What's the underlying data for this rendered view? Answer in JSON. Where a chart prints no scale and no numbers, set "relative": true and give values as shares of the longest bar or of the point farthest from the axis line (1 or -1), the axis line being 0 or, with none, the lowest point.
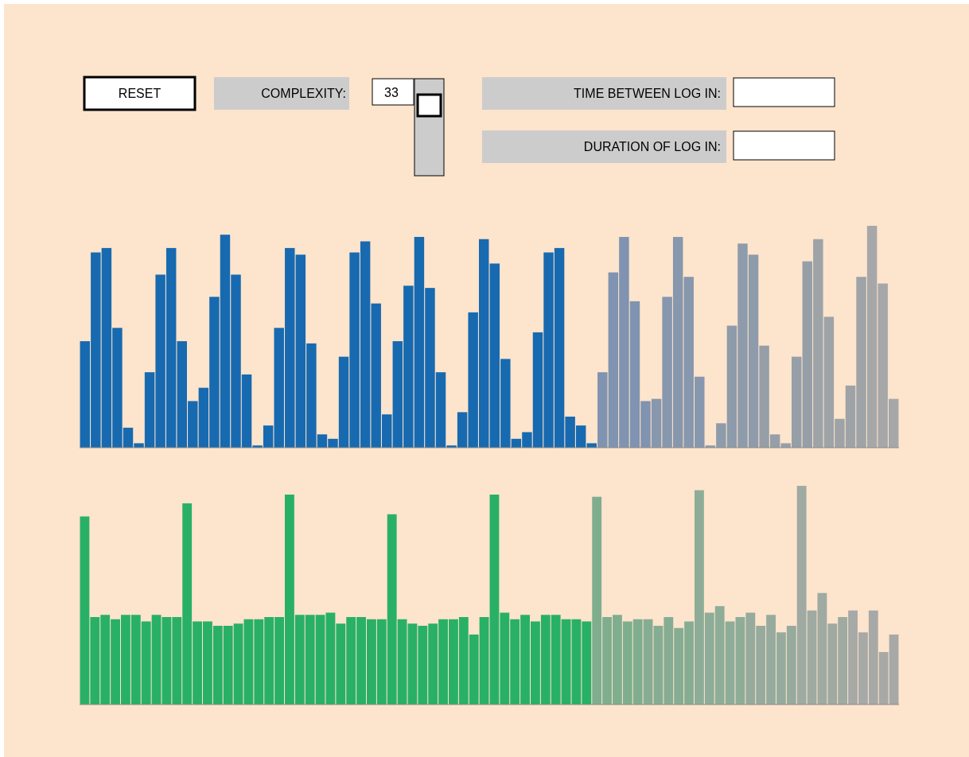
{
  "chart_data": [
    {
      "type": "other",
      "annotations": [
        "RESET",
        "COMPLEXITY:",
        "33",
        "TIME BETWEEN LOG IN:",
        "DURATION OF LOG IN:"
      ]
    },
    {
      "type": "bar",
      "relative": true,
      "categories": [
        null,
        null,
        null,
        null,
        null,
        null,
        null,
        null,
        null,
        null,
        null,
        null,
        null,
        null,
        null,
        null,
        null,
        null,
        null,
        null,
        null,
        null,
        null,
        null,
        null,
        null,
        null,
        null,
        null,
        null,
        null,
        null,
        null,
        null,
        null,
        null,
        null,
        null,
        null,
        null,
        null,
        null,
        null,
        null,
        null,
        null,
        null,
        null,
        null,
        null,
        null,
        null,
        null,
        null,
        null,
        null,
        null,
        null,
        null,
        null,
        null,
        null,
        null,
        null,
        null,
        null,
        null,
        null,
        null,
        null,
        null,
        null,
        null,
        null,
        null,
        null
      ],
      "values": [
        0.48,
        0.88,
        0.9,
        0.54,
        0.09,
        0.02,
        0.34,
        0.78,
        0.9,
        0.48,
        0.21,
        0.27,
        0.68,
        0.96,
        0.78,
        0.33,
        0.01,
        0.1,
        0.54,
        0.9,
        0.87,
        0.47,
        0.06,
        0.04,
        0.41,
        0.88,
        0.93,
        0.65,
        0.15,
        0.48,
        0.73,
        0.95,
        0.72,
        0.34,
        0.01,
        0.16,
        0.61,
        0.94,
        0.83,
        0.4,
        0.04,
        0.07,
        0.52,
        0.88,
        0.9,
        0.14,
        0.1,
        0.02,
        0.34,
        0.79,
        0.95,
        0.66,
        0.21,
        0.22,
        0.68,
        0.95,
        0.77,
        0.32,
        0.01,
        0.11,
        0.55,
        0.92,
        0.87,
        0.46,
        0.06,
        0.02,
        0.41,
        0.84,
        0.94,
        0.59,
        0.13,
        0.28,
        0.77,
        1,
        0.74,
        0.22
      ],
      "colors": [
        "#176ab0",
        "#176ab0",
        "#176ab0",
        "#176ab0",
        "#176ab0",
        "#176ab0",
        "#176ab0",
        "#176ab0",
        "#176ab0",
        "#176ab0",
        "#176ab0",
        "#176ab0",
        "#176ab0",
        "#176ab0",
        "#176ab0",
        "#176ab0",
        "#176ab0",
        "#176ab0",
        "#176ab0",
        "#176ab0",
        "#176ab0",
        "#176ab0",
        "#176ab0",
        "#176ab0",
        "#176ab0",
        "#176ab0",
        "#176ab0",
        "#176ab0",
        "#176ab0",
        "#176ab0",
        "#176ab0",
        "#176ab0",
        "#176ab0",
        "#176ab0",
        "#176ab0",
        "#176ab0",
        "#176ab0",
        "#176ab0",
        "#176ab0",
        "#176ab0",
        "#176ab0",
        "#176ab0",
        "#176ab0",
        "#176ab0",
        "#176ab0",
        "#176ab0",
        "#176ab0",
        "#176ab0",
        "#8093b0",
        "#8093b0",
        "#8093b0",
        "#8093b0",
        "#8093b0",
        "#8797ad",
        "#8797ad",
        "#8797ad",
        "#8797ad",
        "#8797ad",
        "#8e9baa",
        "#8e9baa",
        "#8e9baa",
        "#8e9baa",
        "#8e9baa",
        "#969fa8",
        "#969fa8",
        "#969fa8",
        "#969fa8",
        "#969fa8",
        "#9ea3a7",
        "#9ea3a7",
        "#9ea3a7",
        "#9ea3a7",
        "#9ea3a7",
        "#a6a7a8",
        "#a6a7a8",
        "#a6a7a8"
      ]
    },
    {
      "type": "bar",
      "relative": true,
      "categories": [
        null,
        null,
        null,
        null,
        null,
        null,
        null,
        null,
        null,
        null,
        null,
        null,
        null,
        null,
        null,
        null,
        null,
        null,
        null,
        null,
        null,
        null,
        null,
        null,
        null,
        null,
        null,
        null,
        null,
        null,
        null,
        null,
        null,
        null,
        null,
        null,
        null,
        null,
        null,
        null,
        null,
        null,
        null,
        null,
        null,
        null,
        null,
        null,
        null,
        null,
        null,
        null,
        null,
        null,
        null,
        null,
        null,
        null,
        null,
        null,
        null,
        null,
        null,
        null,
        null,
        null,
        null,
        null,
        null,
        null,
        null,
        null,
        null,
        null,
        null,
        null,
        null,
        null,
        null,
        null
      ],
      "values": [
        0.86,
        0.4,
        0.41,
        0.39,
        0.41,
        0.41,
        0.38,
        0.41,
        0.4,
        0.4,
        0.92,
        0.38,
        0.38,
        0.36,
        0.36,
        0.37,
        0.39,
        0.39,
        0.4,
        0.4,
        0.96,
        0.41,
        0.41,
        0.41,
        0.42,
        0.37,
        0.4,
        0.4,
        0.39,
        0.39,
        0.87,
        0.39,
        0.37,
        0.36,
        0.37,
        0.39,
        0.39,
        0.4,
        0.32,
        0.4,
        0.96,
        0.42,
        0.39,
        0.41,
        0.38,
        0.41,
        0.41,
        0.39,
        0.39,
        0.38,
        0.95,
        0.4,
        0.41,
        0.38,
        0.39,
        0.39,
        0.36,
        0.4,
        0.35,
        0.38,
        0.98,
        0.42,
        0.45,
        0.38,
        0.4,
        0.42,
        0.36,
        0.41,
        0.33,
        0.36,
        1,
        0.43,
        0.51,
        0.37,
        0.4,
        0.43,
        0.33,
        0.43,
        0.24,
        0.32
      ],
      "colors": [
        "#29b067",
        "#29b067",
        "#29b067",
        "#29b067",
        "#29b067",
        "#29b067",
        "#29b067",
        "#29b067",
        "#29b067",
        "#29b067",
        "#29b067",
        "#29b067",
        "#29b067",
        "#29b067",
        "#29b067",
        "#29b067",
        "#29b067",
        "#29b067",
        "#29b067",
        "#29b067",
        "#29b067",
        "#29b067",
        "#29b067",
        "#29b067",
        "#29b067",
        "#29b067",
        "#29b067",
        "#29b067",
        "#29b067",
        "#29b067",
        "#29b067",
        "#29b067",
        "#29b067",
        "#29b067",
        "#29b067",
        "#29b067",
        "#29b067",
        "#29b067",
        "#29b067",
        "#29b067",
        "#29b067",
        "#29b067",
        "#29b067",
        "#29b067",
        "#29b067",
        "#29b067",
        "#29b067",
        "#29b067",
        "#29b067",
        "#29b067",
        "#7fae8e",
        "#7fae8e",
        "#7fae8e",
        "#7fae8e",
        "#7fae8e",
        "#86ad93",
        "#86ad93",
        "#86ad93",
        "#86ad93",
        "#86ad93",
        "#8ead98",
        "#8ead98",
        "#8ead98",
        "#8ead98",
        "#8ead98",
        "#96ab9d",
        "#96ab9d",
        "#96ab9d",
        "#96ab9d",
        "#96ab9d",
        "#9eaaa2",
        "#9eaaa2",
        "#9eaaa2",
        "#9eaaa2",
        "#9eaaa2",
        "#a7a9a7",
        "#a7a9a7",
        "#a7a9a7",
        "#a7a9a7",
        "#a7a9a7"
      ]
    }
  ]
}
